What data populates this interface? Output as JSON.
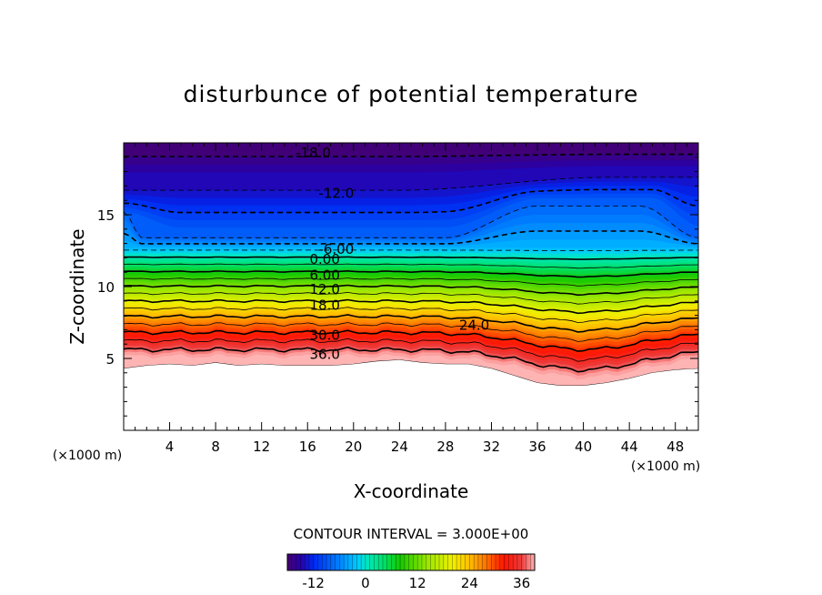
{
  "chart_data": {
    "type": "contour",
    "title": "disturbunce of potential temperature",
    "xlabel": "X-coordinate",
    "ylabel": "Z-coordinate",
    "x_unit": "(×1000 m)",
    "y_unit": "(×1000 m)",
    "xlim": [
      0,
      50
    ],
    "ylim": [
      0,
      20
    ],
    "xticks": [
      4,
      8,
      12,
      16,
      20,
      24,
      28,
      32,
      36,
      40,
      44,
      48
    ],
    "yticks": [
      5,
      10,
      15
    ],
    "contour_interval_text": "CONTOUR INTERVAL = 3.000E+00",
    "colorbar": {
      "min": -18,
      "max": 39,
      "ticks": [
        "-12",
        "0",
        "12",
        "24",
        "36"
      ],
      "tick_values": [
        -12,
        0,
        12,
        24,
        36
      ]
    },
    "terrain_top": [
      [
        0,
        4.3
      ],
      [
        2,
        4.5
      ],
      [
        4,
        4.6
      ],
      [
        6,
        4.5
      ],
      [
        8,
        4.7
      ],
      [
        10,
        4.5
      ],
      [
        12,
        4.6
      ],
      [
        14,
        4.5
      ],
      [
        16,
        4.5
      ],
      [
        18,
        4.5
      ],
      [
        20,
        4.6
      ],
      [
        22,
        4.8
      ],
      [
        24,
        4.9
      ],
      [
        26,
        4.7
      ],
      [
        28,
        4.6
      ],
      [
        30,
        4.6
      ],
      [
        32,
        4.3
      ],
      [
        34,
        3.8
      ],
      [
        36,
        3.3
      ],
      [
        38,
        3.1
      ],
      [
        40,
        3.1
      ],
      [
        42,
        3.3
      ],
      [
        44,
        3.6
      ],
      [
        46,
        4.0
      ],
      [
        48,
        4.2
      ],
      [
        50,
        4.3
      ]
    ],
    "contour_labels": [
      {
        "text": "-18.0",
        "x": 16.5,
        "z": 19.3
      },
      {
        "text": "-12.0",
        "x": 18.5,
        "z": 16.5
      },
      {
        "text": "-6.00",
        "x": 18.5,
        "z": 12.6
      },
      {
        "text": "0.00",
        "x": 17.5,
        "z": 11.9
      },
      {
        "text": "6.00",
        "x": 17.5,
        "z": 10.8
      },
      {
        "text": "12.0",
        "x": 17.5,
        "z": 9.8
      },
      {
        "text": "18.0",
        "x": 17.5,
        "z": 8.7
      },
      {
        "text": "24.0",
        "x": 30.5,
        "z": 7.3
      },
      {
        "text": "30.0",
        "x": 17.5,
        "z": 6.6
      },
      {
        "text": "36.0",
        "x": 17.5,
        "z": 5.3
      }
    ]
  }
}
